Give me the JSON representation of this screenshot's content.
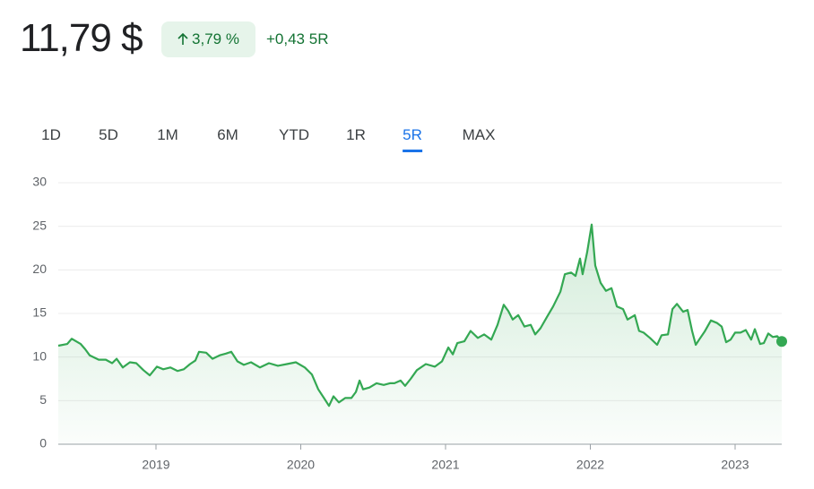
{
  "header": {
    "price": "11,79 $",
    "change_percent": "3,79 %",
    "change": "+0,43",
    "period": "5R"
  },
  "tabs": [
    "1D",
    "5D",
    "1M",
    "6M",
    "YTD",
    "1R",
    "5R",
    "MAX"
  ],
  "selected_tab": 6,
  "chart_data": {
    "type": "line",
    "color": "#34a853",
    "grid": true,
    "x": [
      2018.325,
      2018.387,
      2018.418,
      2018.48,
      2018.511,
      2018.542,
      2018.604,
      2018.653,
      2018.697,
      2018.728,
      2018.771,
      2018.82,
      2018.864,
      2018.913,
      2018.957,
      2019.006,
      2019.05,
      2019.099,
      2019.149,
      2019.192,
      2019.235,
      2019.272,
      2019.297,
      2019.347,
      2019.39,
      2019.44,
      2019.483,
      2019.52,
      2019.563,
      2019.607,
      2019.656,
      2019.718,
      2019.78,
      2019.842,
      2019.904,
      2019.966,
      2020.028,
      2020.077,
      2020.121,
      2020.164,
      2020.195,
      2020.226,
      2020.263,
      2020.307,
      2020.35,
      2020.381,
      2020.406,
      2020.43,
      2020.474,
      2020.523,
      2020.573,
      2020.616,
      2020.647,
      2020.69,
      2020.721,
      2020.759,
      2020.802,
      2020.864,
      2020.926,
      2020.975,
      2021.019,
      2021.05,
      2021.081,
      2021.13,
      2021.173,
      2021.223,
      2021.266,
      2021.316,
      2021.359,
      2021.402,
      2021.433,
      2021.464,
      2021.502,
      2021.545,
      2021.588,
      2021.619,
      2021.656,
      2021.7,
      2021.743,
      2021.793,
      2021.824,
      2021.867,
      2021.898,
      2021.929,
      2021.947,
      2021.978,
      2022.009,
      2022.034,
      2022.071,
      2022.108,
      2022.146,
      2022.183,
      2022.226,
      2022.257,
      2022.307,
      2022.337,
      2022.368,
      2022.412,
      2022.461,
      2022.492,
      2022.536,
      2022.567,
      2022.598,
      2022.641,
      2022.672,
      2022.703,
      2022.728,
      2022.752,
      2022.789,
      2022.833,
      2022.876,
      2022.907,
      2022.938,
      2022.969,
      2023.0,
      2023.037,
      2023.074,
      2023.111,
      2023.136,
      2023.173,
      2023.198,
      2023.229,
      2023.26,
      2023.291,
      2023.322
    ],
    "values": [
      11.3,
      11.5,
      12.1,
      11.5,
      10.9,
      10.2,
      9.7,
      9.7,
      9.3,
      9.8,
      8.8,
      9.4,
      9.3,
      8.5,
      7.9,
      8.9,
      8.6,
      8.8,
      8.4,
      8.6,
      9.2,
      9.6,
      10.6,
      10.5,
      9.8,
      10.2,
      10.4,
      10.6,
      9.5,
      9.1,
      9.4,
      8.8,
      9.3,
      9.0,
      9.2,
      9.4,
      8.8,
      8.0,
      6.3,
      5.2,
      4.4,
      5.5,
      4.8,
      5.3,
      5.3,
      6.0,
      7.3,
      6.3,
      6.5,
      7.0,
      6.8,
      7.0,
      7.0,
      7.3,
      6.7,
      7.5,
      8.5,
      9.2,
      8.9,
      9.5,
      11.1,
      10.3,
      11.6,
      11.8,
      13.0,
      12.2,
      12.6,
      12.0,
      13.7,
      16.0,
      15.3,
      14.3,
      14.8,
      13.5,
      13.7,
      12.6,
      13.3,
      14.6,
      15.8,
      17.5,
      19.5,
      19.7,
      19.3,
      21.3,
      19.5,
      22.0,
      25.2,
      20.5,
      18.5,
      17.6,
      17.9,
      15.8,
      15.5,
      14.3,
      14.8,
      13.0,
      12.8,
      12.2,
      11.4,
      12.5,
      12.6,
      15.5,
      16.1,
      15.2,
      15.4,
      13.0,
      11.4,
      12.0,
      12.9,
      14.2,
      13.9,
      13.5,
      11.7,
      12.0,
      12.8,
      12.8,
      13.1,
      12.0,
      13.2,
      11.5,
      11.6,
      12.7,
      12.3,
      12.4,
      11.79
    ],
    "xlim": [
      2018.325,
      2023.322
    ],
    "xticks": [
      2019,
      2020,
      2021,
      2022,
      2023
    ],
    "ylim": [
      0,
      30
    ],
    "yticks": [
      0,
      5,
      10,
      15,
      20,
      25,
      30
    ]
  }
}
